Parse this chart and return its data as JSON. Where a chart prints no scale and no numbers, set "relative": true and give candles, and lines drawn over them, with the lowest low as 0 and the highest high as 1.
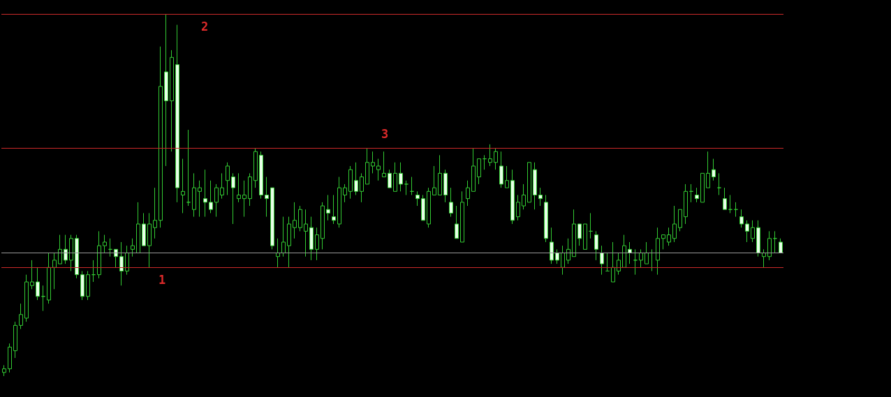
{
  "chart_data": {
    "type": "candlestick",
    "relative": true,
    "grid": false,
    "color": "#33cc33",
    "annotations": [
      {
        "text": "1",
        "y": 0.3
      },
      {
        "text": "2",
        "y": 1.0
      },
      {
        "text": "3",
        "y": 0.63
      }
    ],
    "categories": [
      null,
      null,
      null,
      null,
      null,
      null,
      null,
      null,
      null,
      null,
      null,
      null,
      null,
      null,
      null,
      null,
      null,
      null,
      null,
      null,
      null,
      null,
      null,
      null,
      null,
      null,
      null,
      null,
      null,
      null,
      null,
      null,
      null,
      null,
      null,
      null,
      null,
      null,
      null,
      null,
      null,
      null,
      null,
      null,
      null,
      null,
      null,
      null,
      null,
      null,
      null,
      null,
      null,
      null,
      null,
      null,
      null,
      null,
      null,
      null,
      null,
      null,
      null,
      null,
      null,
      null,
      null,
      null,
      null,
      null,
      null,
      null,
      null,
      null,
      null,
      null,
      null,
      null,
      null,
      null,
      null,
      null,
      null,
      null,
      null,
      null,
      null,
      null,
      null,
      null,
      null,
      null,
      null,
      null,
      null,
      null,
      null,
      null,
      null,
      null,
      null,
      null,
      null,
      null,
      null,
      null,
      null,
      null,
      null,
      null,
      null,
      null,
      null,
      null,
      null,
      null,
      null,
      null,
      null,
      null,
      null,
      null,
      null,
      null,
      null,
      null,
      null,
      null,
      null,
      null,
      null,
      null,
      null,
      null,
      null,
      null,
      null,
      null,
      null,
      null
    ],
    "ohlc": [
      [
        0.01,
        0.03,
        0,
        0.02
      ],
      [
        0.02,
        0.09,
        0.01,
        0.08
      ],
      [
        0.07,
        0.15,
        0.05,
        0.14
      ],
      [
        0.14,
        0.2,
        0.13,
        0.17
      ],
      [
        0.16,
        0.28,
        0.15,
        0.26
      ],
      [
        0.25,
        0.32,
        0.24,
        0.26
      ],
      [
        0.26,
        0.3,
        0.21,
        0.22
      ],
      [
        0.22,
        0.25,
        0.18,
        0.22
      ],
      [
        0.21,
        0.34,
        0.2,
        0.3
      ],
      [
        0.3,
        0.34,
        0.24,
        0.32
      ],
      [
        0.31,
        0.39,
        0.31,
        0.35
      ],
      [
        0.35,
        0.39,
        0.31,
        0.32
      ],
      [
        0.32,
        0.39,
        0.29,
        0.38
      ],
      [
        0.38,
        0.39,
        0.27,
        0.28
      ],
      [
        0.28,
        0.29,
        0.21,
        0.22
      ],
      [
        0.22,
        0.29,
        0.21,
        0.28
      ],
      [
        0.28,
        0.32,
        0.26,
        0.28
      ],
      [
        0.28,
        0.4,
        0.27,
        0.36
      ],
      [
        0.36,
        0.39,
        0.34,
        0.37
      ],
      [
        0.35,
        0.38,
        0.33,
        0.35
      ],
      [
        0.35,
        0.35,
        0.3,
        0.33
      ],
      [
        0.33,
        0.37,
        0.25,
        0.29
      ],
      [
        0.29,
        0.36,
        0.28,
        0.34
      ],
      [
        0.35,
        0.38,
        0.33,
        0.36
      ],
      [
        0.34,
        0.48,
        0.34,
        0.42
      ],
      [
        0.42,
        0.45,
        0.36,
        0.36
      ],
      [
        0.36,
        0.45,
        0.3,
        0.42
      ],
      [
        0.41,
        0.52,
        0.38,
        0.43
      ],
      [
        0.43,
        0.91,
        0.41,
        0.8
      ],
      [
        0.84,
        1,
        0.58,
        0.76
      ],
      [
        0.76,
        0.9,
        0.62,
        0.88
      ],
      [
        0.86,
        0.97,
        0.48,
        0.52
      ],
      [
        0.5,
        0.6,
        0.45,
        0.51
      ],
      [
        0.48,
        0.68,
        0.47,
        0.48
      ],
      [
        0.46,
        0.56,
        0.44,
        0.52
      ],
      [
        0.51,
        0.54,
        0.44,
        0.52
      ],
      [
        0.49,
        0.57,
        0.44,
        0.48
      ],
      [
        0.48,
        0.54,
        0.45,
        0.46
      ],
      [
        0.48,
        0.53,
        0.44,
        0.52
      ],
      [
        0.5,
        0.56,
        0.49,
        0.52
      ],
      [
        0.54,
        0.59,
        0.5,
        0.58
      ],
      [
        0.55,
        0.56,
        0.42,
        0.52
      ],
      [
        0.49,
        0.56,
        0.48,
        0.5
      ],
      [
        0.49,
        0.54,
        0.44,
        0.5
      ],
      [
        0.49,
        0.56,
        0.47,
        0.55
      ],
      [
        0.54,
        0.63,
        0.52,
        0.62
      ],
      [
        0.61,
        0.62,
        0.49,
        0.5
      ],
      [
        0.5,
        0.55,
        0.44,
        0.49
      ],
      [
        0.52,
        0.52,
        0.35,
        0.36
      ],
      [
        0.33,
        0.38,
        0.3,
        0.34
      ],
      [
        0.34,
        0.44,
        0.33,
        0.37
      ],
      [
        0.36,
        0.44,
        0.3,
        0.42
      ],
      [
        0.41,
        0.48,
        0.38,
        0.43
      ],
      [
        0.41,
        0.47,
        0.4,
        0.46
      ],
      [
        0.4,
        0.46,
        0.33,
        0.42
      ],
      [
        0.41,
        0.44,
        0.32,
        0.35
      ],
      [
        0.35,
        0.41,
        0.32,
        0.39
      ],
      [
        0.38,
        0.48,
        0.35,
        0.47
      ],
      [
        0.46,
        0.5,
        0.43,
        0.45
      ],
      [
        0.44,
        0.5,
        0.42,
        0.43
      ],
      [
        0.42,
        0.55,
        0.41,
        0.52
      ],
      [
        0.5,
        0.53,
        0.48,
        0.52
      ],
      [
        0.51,
        0.58,
        0.49,
        0.57
      ],
      [
        0.54,
        0.59,
        0.5,
        0.51
      ],
      [
        0.51,
        0.56,
        0.48,
        0.55
      ],
      [
        0.53,
        0.63,
        0.53,
        0.59
      ],
      [
        0.58,
        0.62,
        0.56,
        0.59
      ],
      [
        0.57,
        0.6,
        0.54,
        0.58
      ],
      [
        0.55,
        0.62,
        0.55,
        0.56
      ],
      [
        0.56,
        0.57,
        0.52,
        0.52
      ],
      [
        0.51,
        0.59,
        0.51,
        0.56
      ],
      [
        0.56,
        0.59,
        0.51,
        0.53
      ],
      [
        0.53,
        0.54,
        0.5,
        0.53
      ],
      [
        0.51,
        0.55,
        0.5,
        0.51
      ],
      [
        0.5,
        0.51,
        0.47,
        0.49
      ],
      [
        0.49,
        0.5,
        0.43,
        0.43
      ],
      [
        0.42,
        0.52,
        0.41,
        0.51
      ],
      [
        0.5,
        0.58,
        0.5,
        0.52
      ],
      [
        0.5,
        0.61,
        0.5,
        0.56
      ],
      [
        0.56,
        0.57,
        0.48,
        0.5
      ],
      [
        0.48,
        0.52,
        0.44,
        0.45
      ],
      [
        0.42,
        0.47,
        0.38,
        0.38
      ],
      [
        0.37,
        0.51,
        0.37,
        0.48
      ],
      [
        0.49,
        0.54,
        0.47,
        0.52
      ],
      [
        0.51,
        0.63,
        0.51,
        0.58
      ],
      [
        0.55,
        0.6,
        0.53,
        0.6
      ],
      [
        0.6,
        0.61,
        0.57,
        0.6
      ],
      [
        0.59,
        0.64,
        0.58,
        0.6
      ],
      [
        0.59,
        0.63,
        0.57,
        0.62
      ],
      [
        0.58,
        0.62,
        0.52,
        0.53
      ],
      [
        0.52,
        0.58,
        0.52,
        0.54
      ],
      [
        0.54,
        0.57,
        0.42,
        0.43
      ],
      [
        0.44,
        0.5,
        0.43,
        0.48
      ],
      [
        0.47,
        0.53,
        0.46,
        0.5
      ],
      [
        0.48,
        0.59,
        0.48,
        0.59
      ],
      [
        0.57,
        0.59,
        0.46,
        0.5
      ],
      [
        0.5,
        0.52,
        0.47,
        0.49
      ],
      [
        0.48,
        0.5,
        0.37,
        0.38
      ],
      [
        0.37,
        0.41,
        0.31,
        0.32
      ],
      [
        0.34,
        0.35,
        0.31,
        0.32
      ],
      [
        0.3,
        0.36,
        0.28,
        0.34
      ],
      [
        0.32,
        0.38,
        0.31,
        0.35
      ],
      [
        0.33,
        0.46,
        0.33,
        0.42
      ],
      [
        0.42,
        0.42,
        0.36,
        0.38
      ],
      [
        0.35,
        0.42,
        0.35,
        0.42
      ],
      [
        0.4,
        0.45,
        0.38,
        0.4
      ],
      [
        0.39,
        0.4,
        0.32,
        0.35
      ],
      [
        0.34,
        0.36,
        0.28,
        0.31
      ],
      [
        0.29,
        0.34,
        0.29,
        0.29
      ],
      [
        0.26,
        0.37,
        0.26,
        0.3
      ],
      [
        0.29,
        0.34,
        0.28,
        0.32
      ],
      [
        0.3,
        0.39,
        0.3,
        0.36
      ],
      [
        0.35,
        0.37,
        0.31,
        0.34
      ],
      [
        0.32,
        0.35,
        0.28,
        0.32
      ],
      [
        0.32,
        0.35,
        0.3,
        0.34
      ],
      [
        0.31,
        0.37,
        0.31,
        0.34
      ],
      [
        0.34,
        0.35,
        0.29,
        0.34
      ],
      [
        0.32,
        0.41,
        0.28,
        0.38
      ],
      [
        0.38,
        0.39,
        0.35,
        0.39
      ],
      [
        0.37,
        0.41,
        0.36,
        0.39
      ],
      [
        0.38,
        0.47,
        0.37,
        0.42
      ],
      [
        0.41,
        0.46,
        0.4,
        0.46
      ],
      [
        0.44,
        0.53,
        0.42,
        0.51
      ],
      [
        0.51,
        0.53,
        0.48,
        0.51
      ],
      [
        0.5,
        0.52,
        0.48,
        0.49
      ],
      [
        0.48,
        0.56,
        0.48,
        0.56
      ],
      [
        0.52,
        0.62,
        0.52,
        0.56
      ],
      [
        0.57,
        0.6,
        0.54,
        0.55
      ],
      [
        0.52,
        0.56,
        0.5,
        0.52
      ],
      [
        0.49,
        0.52,
        0.46,
        0.46
      ],
      [
        0.46,
        0.5,
        0.45,
        0.46
      ],
      [
        0.46,
        0.48,
        0.44,
        0.46
      ],
      [
        0.44,
        0.46,
        0.41,
        0.42
      ],
      [
        0.42,
        0.43,
        0.37,
        0.4
      ],
      [
        0.38,
        0.43,
        0.37,
        0.41
      ],
      [
        0.41,
        0.43,
        0.33,
        0.34
      ],
      [
        0.33,
        0.35,
        0.3,
        0.34
      ],
      [
        0.33,
        0.4,
        0.32,
        0.38
      ],
      [
        0.38,
        0.4,
        0.34,
        0.38
      ],
      [
        0.37,
        0.38,
        0.34,
        0.34
      ]
    ],
    "ref_lines": [
      {
        "axis": "y",
        "value": 0.34,
        "label": null,
        "color": "#9a9a9a"
      },
      {
        "axis": "y",
        "value": 0.3,
        "label": null,
        "color": "#cc2a2a"
      },
      {
        "axis": "y",
        "value": 1.0,
        "label": null,
        "color": "#cc2a2a"
      },
      {
        "axis": "y",
        "value": 0.63,
        "label": null,
        "color": "#cc2a2a"
      }
    ]
  }
}
